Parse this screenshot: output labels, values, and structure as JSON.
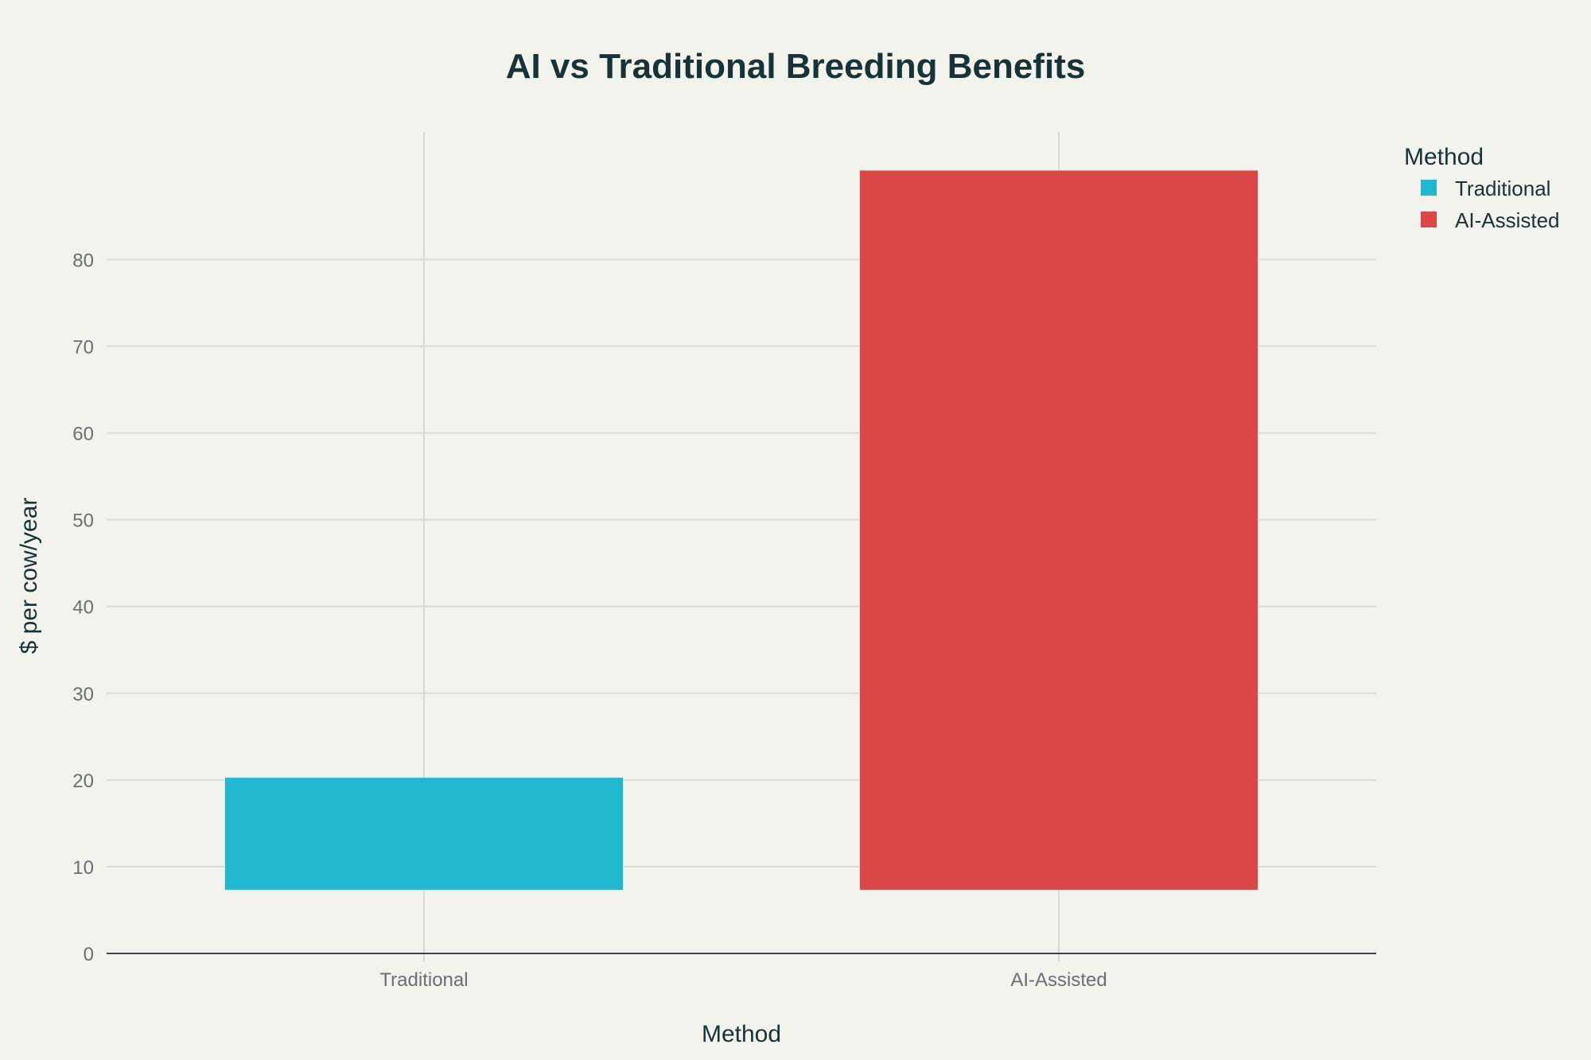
{
  "chart_data": {
    "type": "bar",
    "title": "AI vs Traditional Breeding Benefits",
    "xlabel": "Method",
    "ylabel": "$ per cow/year",
    "categories": [
      "Traditional",
      "AI-Assisted"
    ],
    "base": [
      7.3,
      7.3
    ],
    "values": [
      20.3,
      90.3
    ],
    "colors": [
      "#21b7cd",
      "#db4647"
    ],
    "ylim": [
      0,
      94.7
    ],
    "yticks": [
      0,
      10,
      20,
      30,
      40,
      50,
      60,
      70,
      80
    ],
    "grid": true,
    "legend": {
      "title": "Method",
      "position": "top-right",
      "entries": [
        "Traditional",
        "AI-Assisted"
      ]
    }
  }
}
